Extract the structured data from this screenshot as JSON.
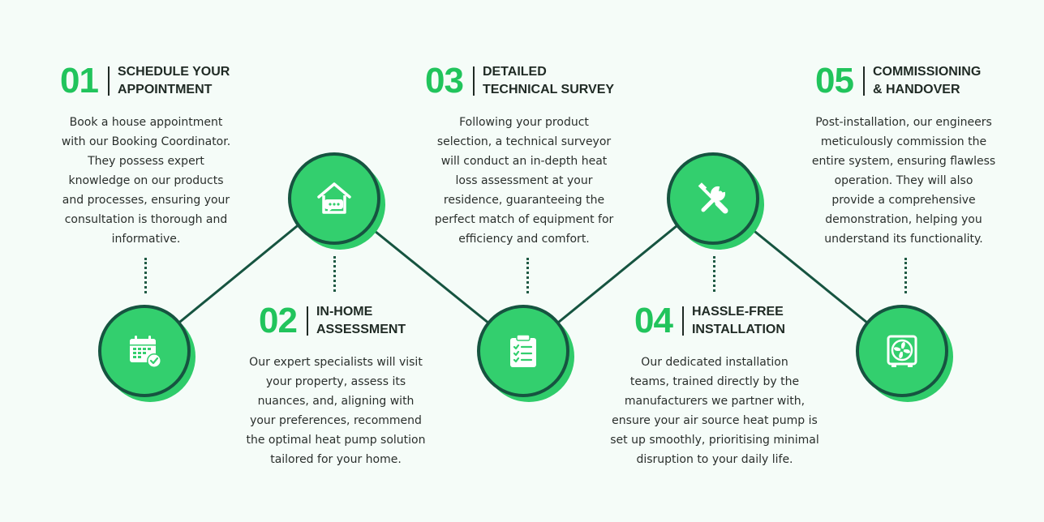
{
  "diagram": {
    "colors": {
      "accent_green": "#21c45c",
      "circle_fill": "#33cf6e",
      "line_dark_green": "#165440",
      "background": "#f5fcf8",
      "text": "#1f2a24"
    },
    "steps": [
      {
        "number": "01",
        "title": "SCHEDULE YOUR\nAPPOINTMENT",
        "description": "Book a house appointment\nwith our Booking Coordinator.\nThey possess expert\nknowledge on our products\nand processes, ensuring your\nconsultation is thorough and\ninformative.",
        "icon": "calendar-check-icon"
      },
      {
        "number": "02",
        "title": "IN-HOME\nASSESSMENT",
        "description": "Our expert specialists will visit\nyour property, assess its\nnuances, and, aligning with\nyour preferences, recommend\nthe optimal heat pump solution\ntailored for your home.",
        "icon": "house-chat-icon"
      },
      {
        "number": "03",
        "title": "DETAILED\nTECHNICAL SURVEY",
        "description": "Following your product\nselection, a technical surveyor\nwill conduct an in-depth heat\nloss assessment at your\nresidence, guaranteeing the\nperfect match of equipment for\nefficiency and comfort.",
        "icon": "clipboard-checklist-icon"
      },
      {
        "number": "04",
        "title": "HASSLE-FREE\nINSTALLATION",
        "description": "Our dedicated installation\nteams, trained directly by the\nmanufacturers we partner with,\nensure your air source heat pump is\nset up smoothly, prioritising minimal\ndisruption to your daily life.",
        "icon": "wrench-screwdriver-icon"
      },
      {
        "number": "05",
        "title": "COMMISSIONING\n& HANDOVER",
        "description": "Post-installation, our engineers\nmeticulously commission the\nentire system, ensuring flawless\noperation. They will also\nprovide a comprehensive\ndemonstration, helping you\nunderstand its functionality.",
        "icon": "heat-pump-fan-icon"
      }
    ]
  }
}
